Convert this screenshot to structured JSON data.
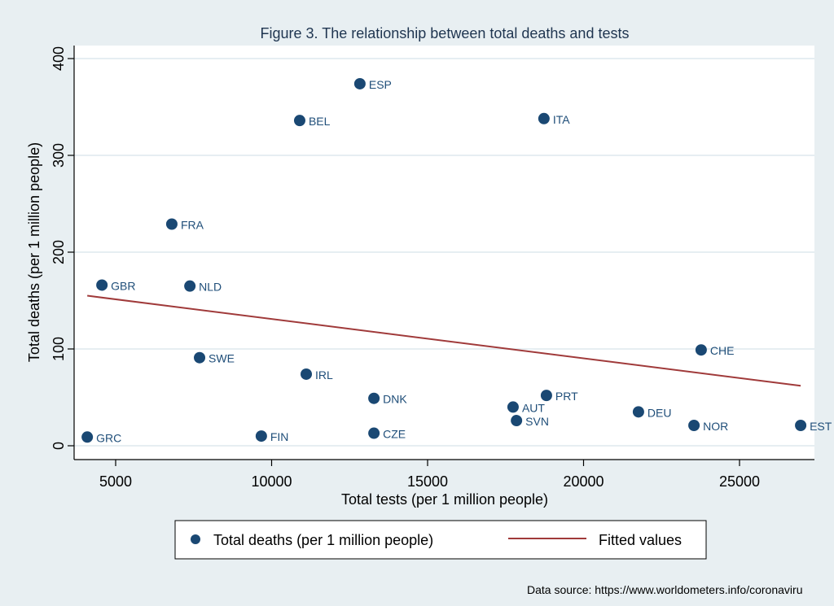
{
  "chart_data": {
    "type": "scatter",
    "title": "Figure 3. The relationship between total deaths and tests",
    "xlabel": "Total tests (per 1 million people)",
    "ylabel": "Total deaths (per 1 million people)",
    "xlim": [
      3700,
      27200
    ],
    "ylim": [
      -14,
      414
    ],
    "xticks": [
      5000,
      10000,
      15000,
      20000,
      25000
    ],
    "yticks": [
      0,
      100,
      200,
      300,
      400
    ],
    "grid": "horizontal",
    "legend_position": "bottom",
    "colors": {
      "points": "#1a4873",
      "fit": "#a03a3a",
      "background": "#e8eff2",
      "plot_bg": "#ffffff",
      "grid": "#e6eef2"
    },
    "series": [
      {
        "name": "Total deaths (per 1 million people)",
        "kind": "scatter",
        "points": [
          {
            "label": "GRC",
            "x": 4090,
            "y": 9
          },
          {
            "label": "GBR",
            "x": 4560,
            "y": 166
          },
          {
            "label": "FRA",
            "x": 6800,
            "y": 229
          },
          {
            "label": "NLD",
            "x": 7380,
            "y": 165
          },
          {
            "label": "SWE",
            "x": 7690,
            "y": 91
          },
          {
            "label": "FIN",
            "x": 9670,
            "y": 10
          },
          {
            "label": "BEL",
            "x": 10900,
            "y": 336
          },
          {
            "label": "IRL",
            "x": 11110,
            "y": 74
          },
          {
            "label": "ESP",
            "x": 12830,
            "y": 374
          },
          {
            "label": "DNK",
            "x": 13280,
            "y": 49
          },
          {
            "label": "CZE",
            "x": 13280,
            "y": 13
          },
          {
            "label": "AUT",
            "x": 17740,
            "y": 40
          },
          {
            "label": "SVN",
            "x": 17850,
            "y": 26
          },
          {
            "label": "ITA",
            "x": 18730,
            "y": 338
          },
          {
            "label": "PRT",
            "x": 18810,
            "y": 52
          },
          {
            "label": "DEU",
            "x": 21760,
            "y": 35
          },
          {
            "label": "NOR",
            "x": 23540,
            "y": 21
          },
          {
            "label": "CHE",
            "x": 23770,
            "y": 99
          },
          {
            "label": "EST",
            "x": 26960,
            "y": 21
          }
        ]
      },
      {
        "name": "Fitted values",
        "kind": "line",
        "x": [
          4090,
          26960
        ],
        "y": [
          155,
          62
        ]
      }
    ],
    "source_note": "Data source: https://www.worldometers.info/coronaviru"
  }
}
